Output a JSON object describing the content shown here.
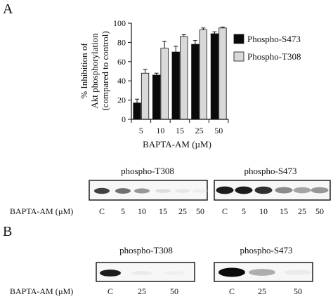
{
  "panels": {
    "a": "A",
    "b": "B"
  },
  "chart_data": {
    "type": "bar",
    "categories": [
      "5",
      "10",
      "15",
      "25",
      "50"
    ],
    "series": [
      {
        "name": "Phospho-S473",
        "values": [
          17,
          46,
          70,
          78,
          89
        ],
        "errors": [
          4,
          2,
          6,
          4,
          2
        ],
        "color": "#0a0a0a"
      },
      {
        "name": "Phospho-T308",
        "values": [
          48,
          74,
          86,
          93,
          95
        ],
        "errors": [
          4,
          7,
          2,
          2,
          1
        ],
        "color": "#d9d9d9"
      }
    ],
    "xlabel": "BAPTA-AM (µM)",
    "ylabel_lines": [
      "% Inhibition of",
      "Akt phosphorylation",
      "(compared to control)"
    ],
    "ylim": [
      0,
      100
    ],
    "yticks": [
      0,
      20,
      40,
      60,
      80,
      100
    ],
    "legend_position": "right",
    "grid": false
  },
  "blots_a": {
    "title_left": "phospho-T308",
    "title_right": "phospho-S473",
    "row_label": "BAPTA-AM (µM)",
    "lanes": [
      "C",
      "5",
      "10",
      "15",
      "25",
      "50"
    ],
    "intensity_left": [
      0.85,
      0.7,
      0.55,
      0.2,
      0.12,
      0.06
    ],
    "intensity_right": [
      0.95,
      0.95,
      0.9,
      0.6,
      0.5,
      0.55
    ]
  },
  "blots_b": {
    "title_left": "phospho-T308",
    "title_right": "phospho-S473",
    "row_label": "BAPTA-AM (µM)",
    "lanes": [
      "C",
      "25",
      "50"
    ],
    "intensity_left": [
      0.95,
      0.08,
      0.04
    ],
    "intensity_right": [
      1.0,
      0.45,
      0.08
    ]
  }
}
